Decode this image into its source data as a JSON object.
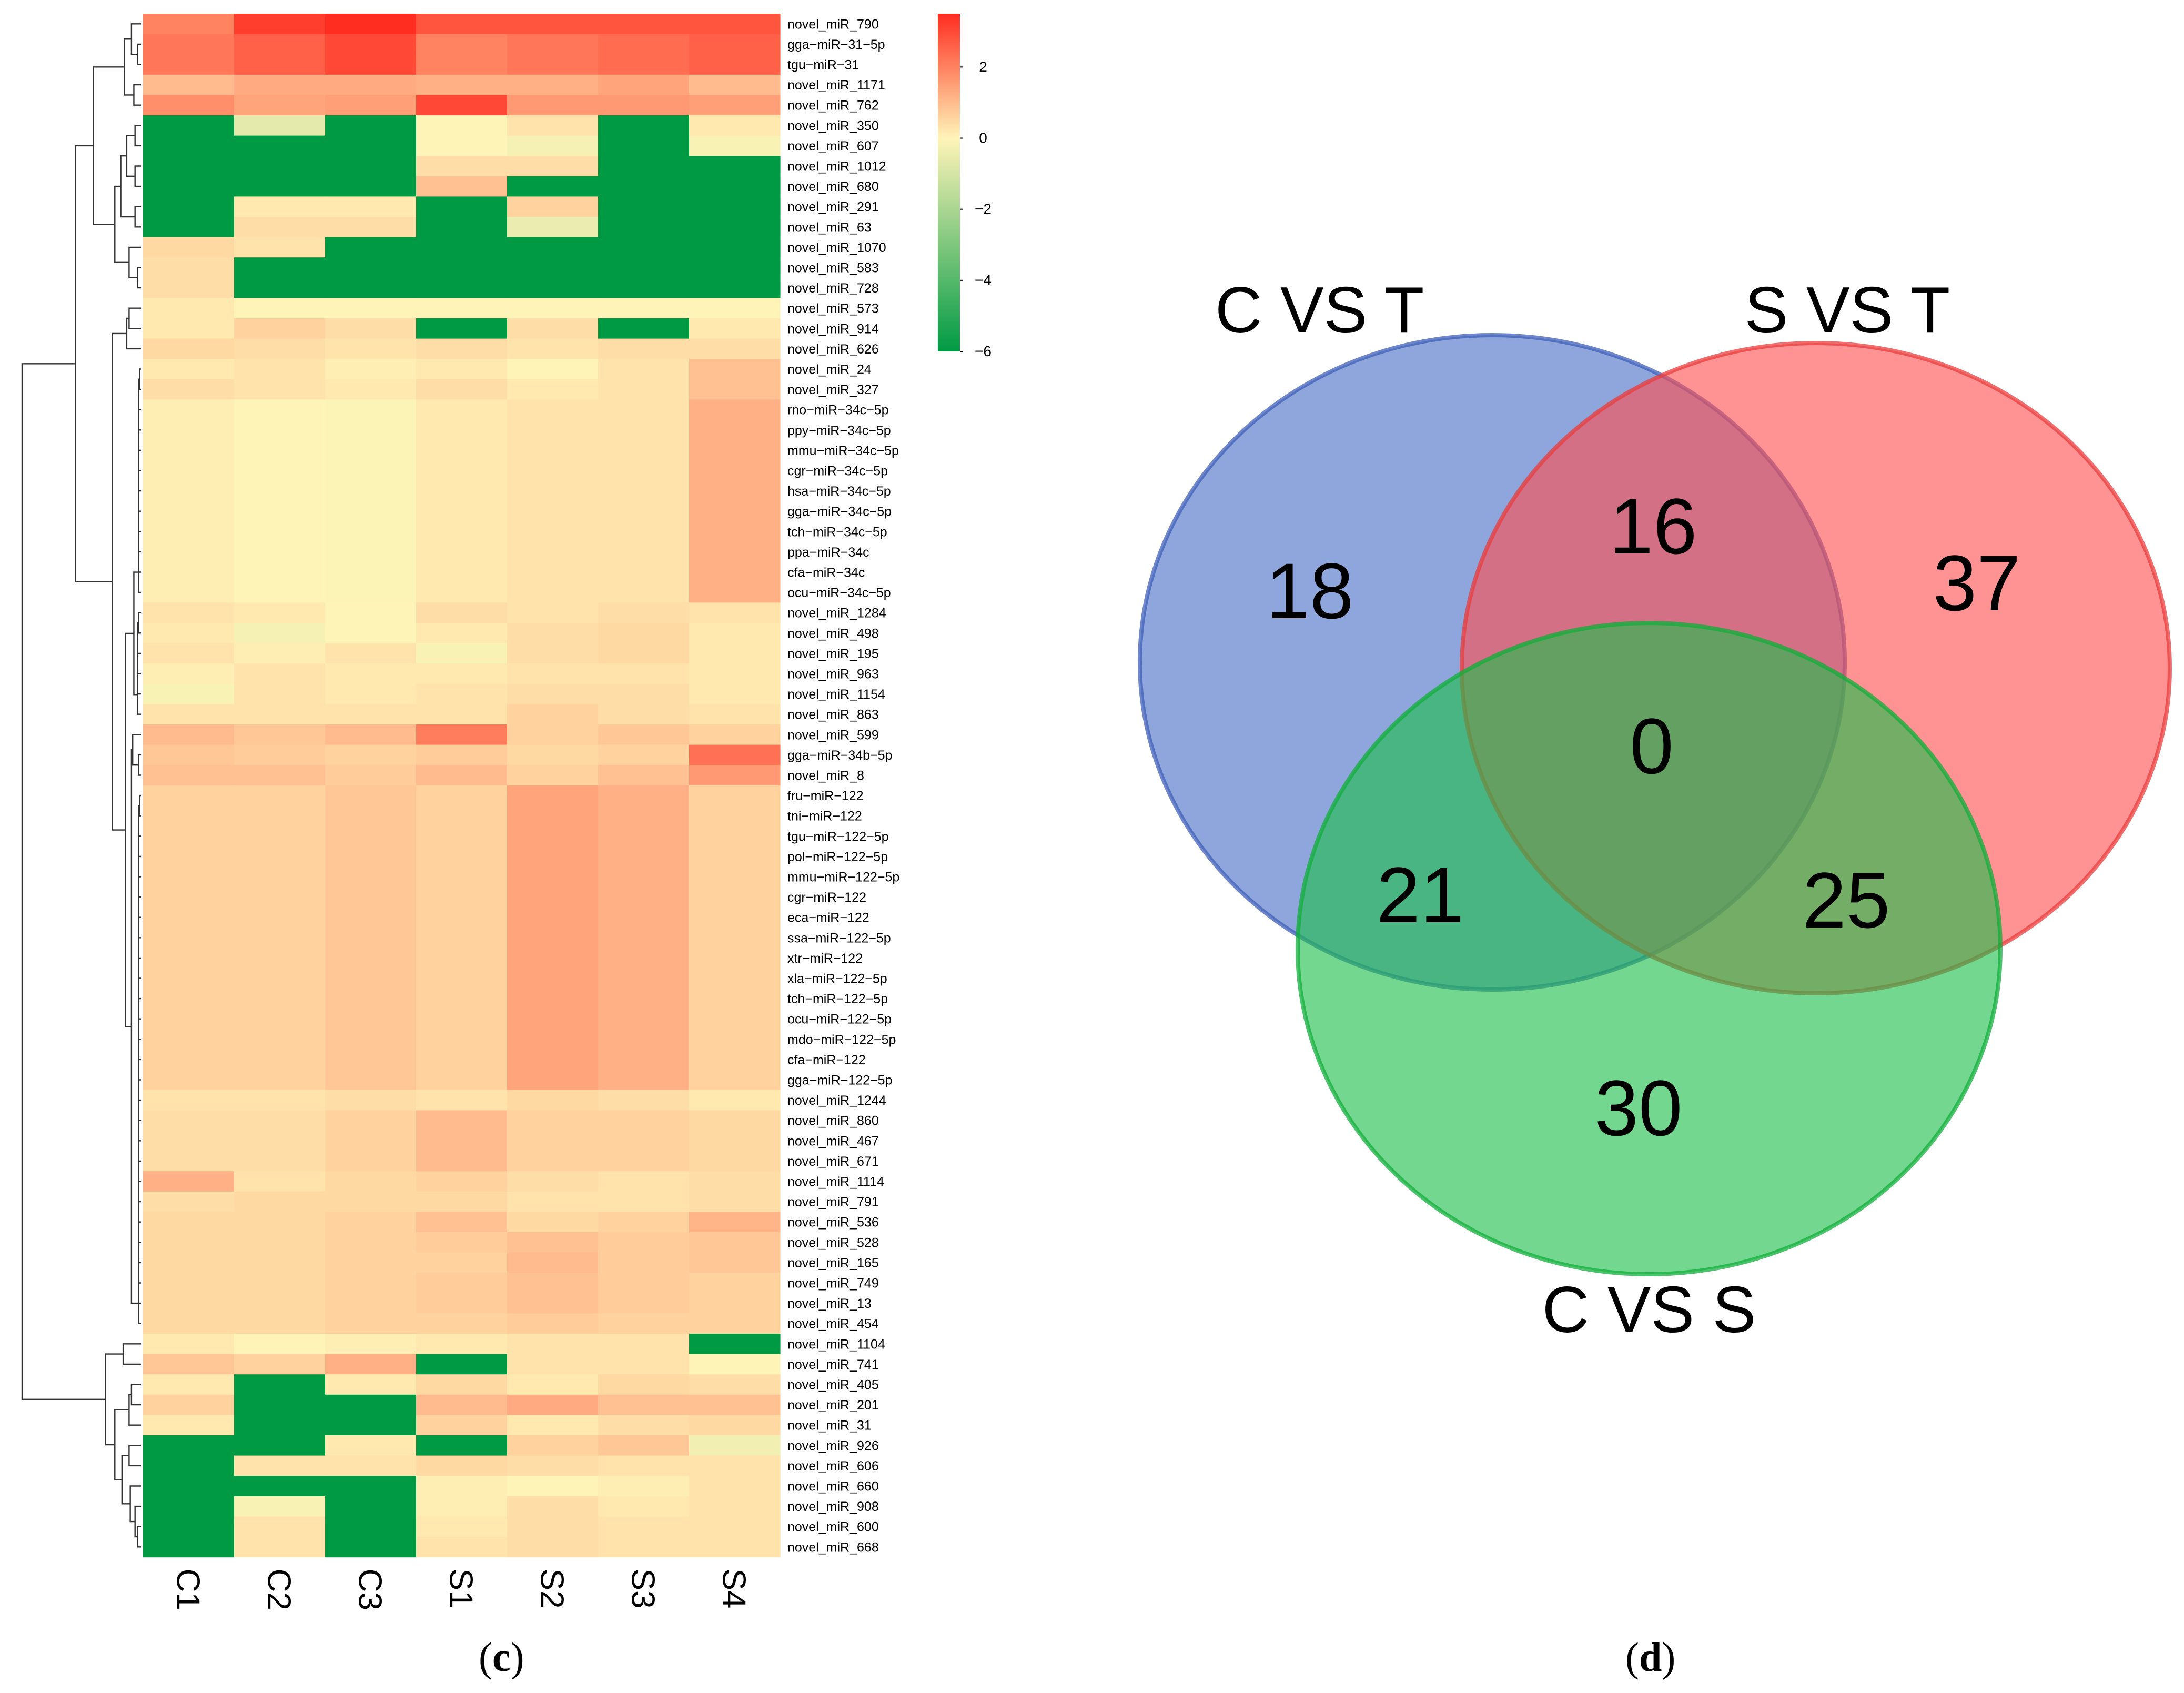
{
  "figure": {
    "panel_c_label": "c",
    "panel_d_label": "d"
  },
  "chart_data": [
    {
      "type": "heatmap",
      "title": "",
      "columns": [
        "C1",
        "C2",
        "C3",
        "S1",
        "S2",
        "S3",
        "S4"
      ],
      "rows": [
        "novel_miR_790",
        "gga−miR−31−5p",
        "tgu−miR−31",
        "novel_miR_1171",
        "novel_miR_762",
        "novel_miR_350",
        "novel_miR_607",
        "novel_miR_1012",
        "novel_miR_680",
        "novel_miR_291",
        "novel_miR_63",
        "novel_miR_1070",
        "novel_miR_583",
        "novel_miR_728",
        "novel_miR_573",
        "novel_miR_914",
        "novel_miR_626",
        "novel_miR_24",
        "novel_miR_327",
        "rno−miR−34c−5p",
        "ppy−miR−34c−5p",
        "mmu−miR−34c−5p",
        "cgr−miR−34c−5p",
        "hsa−miR−34c−5p",
        "gga−miR−34c−5p",
        "tch−miR−34c−5p",
        "ppa−miR−34c",
        "cfa−miR−34c",
        "ocu−miR−34c−5p",
        "novel_miR_1284",
        "novel_miR_498",
        "novel_miR_195",
        "novel_miR_963",
        "novel_miR_1154",
        "novel_miR_863",
        "novel_miR_599",
        "gga−miR−34b−5p",
        "novel_miR_8",
        "fru−miR−122",
        "tni−miR−122",
        "tgu−miR−122−5p",
        "pol−miR−122−5p",
        "mmu−miR−122−5p",
        "cgr−miR−122",
        "eca−miR−122",
        "ssa−miR−122−5p",
        "xtr−miR−122",
        "xla−miR−122−5p",
        "tch−miR−122−5p",
        "ocu−miR−122−5p",
        "mdo−miR−122−5p",
        "cfa−miR−122",
        "gga−miR−122−5p",
        "novel_miR_1244",
        "novel_miR_860",
        "novel_miR_467",
        "novel_miR_671",
        "novel_miR_1114",
        "novel_miR_791",
        "novel_miR_536",
        "novel_miR_528",
        "novel_miR_165",
        "novel_miR_749",
        "novel_miR_13",
        "novel_miR_454",
        "novel_miR_1104",
        "novel_miR_741",
        "novel_miR_405",
        "novel_miR_201",
        "novel_miR_31",
        "novel_miR_926",
        "novel_miR_606",
        "novel_miR_660",
        "novel_miR_908",
        "novel_miR_600",
        "novel_miR_668"
      ],
      "values": [
        [
          2.0,
          3.2,
          3.5,
          2.8,
          2.8,
          2.8,
          2.8
        ],
        [
          2.2,
          2.6,
          3.0,
          2.0,
          2.2,
          2.4,
          2.6
        ],
        [
          2.2,
          2.6,
          3.0,
          2.0,
          2.2,
          2.4,
          2.6
        ],
        [
          1.0,
          1.3,
          1.3,
          1.2,
          1.2,
          1.4,
          1.0
        ],
        [
          1.8,
          1.4,
          1.5,
          3.0,
          1.6,
          1.6,
          1.5
        ],
        [
          -6,
          -0.8,
          -6,
          0,
          0.3,
          -6,
          0.2
        ],
        [
          -6,
          -6,
          -6,
          0,
          -0.3,
          -6,
          -0.2
        ],
        [
          -6,
          -6,
          -6,
          0.4,
          0.4,
          -6,
          -6
        ],
        [
          -6,
          -6,
          -6,
          0.9,
          -6,
          -6,
          -6
        ],
        [
          -6,
          0.2,
          0.2,
          -6,
          0.6,
          -6,
          -6
        ],
        [
          -6,
          0.4,
          0.4,
          -6,
          -0.6,
          -6,
          -6
        ],
        [
          0.5,
          0.3,
          -6,
          -6,
          -6,
          -6,
          -6
        ],
        [
          0.4,
          -6,
          -6,
          -6,
          -6,
          -6,
          -6
        ],
        [
          0.4,
          -6,
          -6,
          -6,
          -6,
          -6,
          -6
        ],
        [
          0.2,
          0.0,
          0.0,
          0.0,
          0.0,
          0.0,
          0.0
        ],
        [
          0.2,
          0.6,
          0.4,
          -6,
          0.4,
          -6,
          0.2
        ],
        [
          0.5,
          0.4,
          0.3,
          0.4,
          0.3,
          0.4,
          0.4
        ],
        [
          0.2,
          0.3,
          0.1,
          0.2,
          0.0,
          0.3,
          0.9
        ],
        [
          0.4,
          0.3,
          0.2,
          0.4,
          0.2,
          0.3,
          0.9
        ],
        [
          0.1,
          0.0,
          -0.1,
          0.2,
          0.3,
          0.3,
          1.2
        ],
        [
          0.1,
          0.0,
          -0.1,
          0.2,
          0.3,
          0.3,
          1.2
        ],
        [
          0.1,
          0.0,
          -0.1,
          0.2,
          0.3,
          0.3,
          1.2
        ],
        [
          0.1,
          0.0,
          -0.1,
          0.2,
          0.3,
          0.3,
          1.2
        ],
        [
          0.1,
          0.0,
          -0.1,
          0.2,
          0.3,
          0.3,
          1.2
        ],
        [
          0.1,
          0.0,
          -0.1,
          0.2,
          0.3,
          0.3,
          1.2
        ],
        [
          0.1,
          0.0,
          -0.1,
          0.2,
          0.3,
          0.3,
          1.2
        ],
        [
          0.1,
          0.0,
          -0.1,
          0.2,
          0.3,
          0.3,
          1.2
        ],
        [
          0.1,
          0.0,
          -0.1,
          0.2,
          0.3,
          0.3,
          1.2
        ],
        [
          0.1,
          0.0,
          -0.1,
          0.2,
          0.3,
          0.3,
          1.2
        ],
        [
          0.3,
          0.2,
          0.0,
          0.4,
          0.3,
          0.4,
          0.3
        ],
        [
          0.2,
          -0.3,
          0.0,
          0.2,
          0.4,
          0.5,
          0.2
        ],
        [
          0.3,
          0.1,
          0.3,
          -0.2,
          0.4,
          0.5,
          0.2
        ],
        [
          0.1,
          0.3,
          0.2,
          0.2,
          0.3,
          0.3,
          0.2
        ],
        [
          -0.2,
          0.3,
          0.2,
          0.3,
          0.4,
          0.4,
          0.2
        ],
        [
          0.3,
          0.3,
          0.3,
          0.3,
          0.6,
          0.4,
          0.3
        ],
        [
          1.0,
          0.8,
          1.0,
          2.1,
          0.6,
          0.8,
          0.6
        ],
        [
          0.8,
          0.7,
          0.6,
          0.7,
          0.5,
          0.6,
          2.3
        ],
        [
          0.9,
          0.9,
          0.7,
          1.0,
          0.6,
          0.9,
          1.6
        ],
        [
          0.6,
          0.6,
          0.8,
          0.6,
          1.4,
          1.2,
          0.6
        ],
        [
          0.6,
          0.6,
          0.8,
          0.6,
          1.4,
          1.2,
          0.6
        ],
        [
          0.6,
          0.6,
          0.8,
          0.6,
          1.4,
          1.2,
          0.6
        ],
        [
          0.6,
          0.6,
          0.8,
          0.6,
          1.4,
          1.2,
          0.6
        ],
        [
          0.6,
          0.6,
          0.8,
          0.6,
          1.4,
          1.2,
          0.6
        ],
        [
          0.6,
          0.6,
          0.8,
          0.6,
          1.4,
          1.2,
          0.6
        ],
        [
          0.6,
          0.6,
          0.8,
          0.6,
          1.4,
          1.2,
          0.6
        ],
        [
          0.6,
          0.6,
          0.8,
          0.6,
          1.4,
          1.2,
          0.6
        ],
        [
          0.6,
          0.6,
          0.8,
          0.6,
          1.4,
          1.2,
          0.6
        ],
        [
          0.6,
          0.6,
          0.8,
          0.6,
          1.4,
          1.2,
          0.6
        ],
        [
          0.6,
          0.6,
          0.8,
          0.6,
          1.4,
          1.2,
          0.6
        ],
        [
          0.6,
          0.6,
          0.8,
          0.6,
          1.4,
          1.2,
          0.6
        ],
        [
          0.6,
          0.6,
          0.8,
          0.6,
          1.4,
          1.2,
          0.6
        ],
        [
          0.6,
          0.6,
          0.8,
          0.6,
          1.4,
          1.2,
          0.6
        ],
        [
          0.6,
          0.6,
          0.8,
          0.6,
          1.4,
          1.2,
          0.6
        ],
        [
          0.3,
          0.3,
          0.4,
          0.3,
          0.5,
          0.4,
          0.2
        ],
        [
          0.4,
          0.4,
          0.6,
          1.0,
          0.6,
          0.6,
          0.5
        ],
        [
          0.4,
          0.4,
          0.6,
          1.0,
          0.6,
          0.6,
          0.5
        ],
        [
          0.4,
          0.4,
          0.6,
          1.0,
          0.6,
          0.6,
          0.5
        ],
        [
          1.2,
          0.3,
          0.5,
          0.6,
          0.4,
          0.3,
          0.4
        ],
        [
          0.4,
          0.5,
          0.5,
          0.5,
          0.3,
          0.3,
          0.4
        ],
        [
          0.5,
          0.5,
          0.6,
          0.9,
          0.5,
          0.6,
          1.1
        ],
        [
          0.5,
          0.5,
          0.6,
          0.7,
          0.9,
          0.7,
          0.8
        ],
        [
          0.5,
          0.5,
          0.6,
          0.6,
          1.0,
          0.7,
          0.8
        ],
        [
          0.5,
          0.5,
          0.6,
          0.7,
          0.9,
          0.7,
          0.6
        ],
        [
          0.5,
          0.5,
          0.6,
          0.7,
          0.9,
          0.7,
          0.6
        ],
        [
          0.5,
          0.5,
          0.6,
          0.6,
          0.7,
          0.6,
          0.6
        ],
        [
          0.2,
          0.0,
          0.1,
          0.2,
          0.3,
          0.3,
          -6
        ],
        [
          0.8,
          0.6,
          1.2,
          -6,
          0.3,
          0.3,
          0.0
        ],
        [
          0.2,
          -6,
          0.2,
          0.5,
          0.2,
          0.5,
          0.4
        ],
        [
          0.6,
          -6,
          -6,
          1.0,
          1.3,
          0.9,
          0.9
        ],
        [
          0.2,
          -6,
          -6,
          0.6,
          0.2,
          0.4,
          0.5
        ],
        [
          -6,
          -6,
          0.2,
          -6,
          0.6,
          0.8,
          -0.4
        ],
        [
          -6,
          0.3,
          0.3,
          0.5,
          0.4,
          0.3,
          0.3
        ],
        [
          -6,
          -6,
          -6,
          0.1,
          0.0,
          0.1,
          0.3
        ],
        [
          -6,
          -0.2,
          -6,
          0.1,
          0.4,
          0.2,
          0.3
        ],
        [
          -6,
          0.3,
          -6,
          0.2,
          0.4,
          0.3,
          0.3
        ],
        [
          -6,
          0.3,
          -6,
          0.3,
          0.4,
          0.3,
          0.3
        ]
      ],
      "colorbar": {
        "ticks": [
          2,
          0,
          -2,
          -4,
          -6
        ],
        "range": [
          -6,
          3.5
        ],
        "colors": [
          "#009a44",
          "#fff4b8",
          "#ff2d20"
        ]
      },
      "dendrogram": "rows",
      "legend_position": "top-right"
    },
    {
      "type": "venn",
      "title": "",
      "sets": [
        {
          "name": "C VS T",
          "color": "#4a6fc6"
        },
        {
          "name": "S VS T",
          "color": "#ff4f4f"
        },
        {
          "name": "C VS S",
          "color": "#1fbe4c"
        }
      ],
      "regions": [
        {
          "sets": [
            "C VS T"
          ],
          "value": 18
        },
        {
          "sets": [
            "S VS T"
          ],
          "value": 37
        },
        {
          "sets": [
            "C VS S"
          ],
          "value": 30
        },
        {
          "sets": [
            "C VS T",
            "S VS T"
          ],
          "value": 16
        },
        {
          "sets": [
            "C VS T",
            "C VS S"
          ],
          "value": 21
        },
        {
          "sets": [
            "S VS T",
            "C VS S"
          ],
          "value": 25
        },
        {
          "sets": [
            "C VS T",
            "S VS T",
            "C VS S"
          ],
          "value": 0
        }
      ]
    }
  ]
}
